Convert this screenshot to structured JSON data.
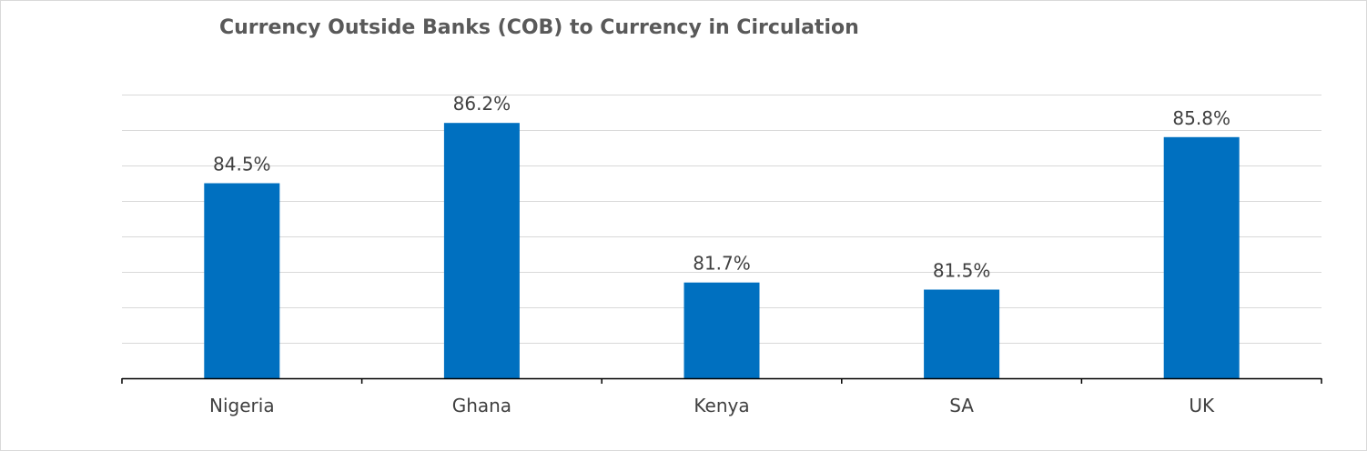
{
  "title": "Currency Outside Banks (COB) to Currency in Circulation",
  "colors": {
    "bar": "#0070C0",
    "gridline": "#d9d9d9",
    "axis": "#000000",
    "label_text": "#404040"
  },
  "chart_data": {
    "type": "bar",
    "title": "Currency Outside Banks (COB) to Currency in Circulation",
    "categories": [
      "Nigeria",
      "Ghana",
      "Kenya",
      "SA",
      "UK"
    ],
    "values": [
      84.5,
      86.2,
      81.7,
      81.5,
      85.8
    ],
    "data_labels": [
      "84.5%",
      "86.2%",
      "81.7%",
      "81.5%",
      "85.8%"
    ],
    "xlabel": "",
    "ylabel": "",
    "ylim": [
      79,
      87
    ],
    "y_tick_step": 1,
    "y_tick_labels_shown": false,
    "grid": true,
    "legend": "none"
  }
}
